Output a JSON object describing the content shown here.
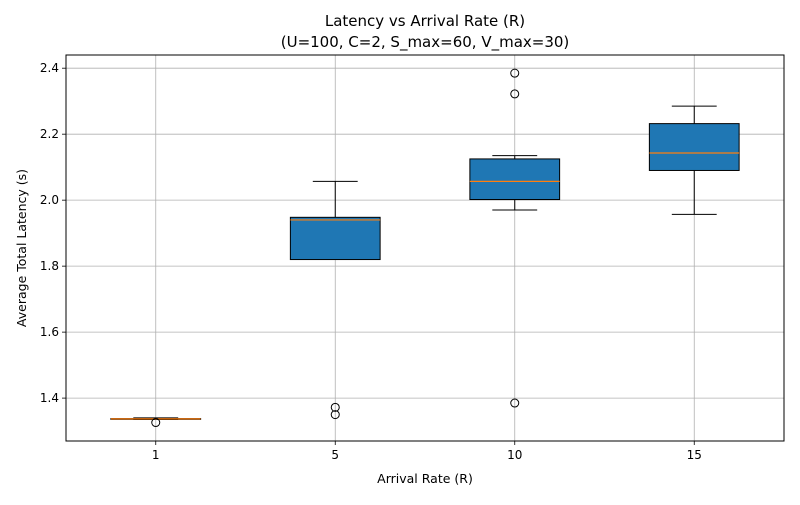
{
  "chart_data": {
    "type": "box",
    "title": "Latency vs Arrival Rate (R)",
    "subtitle": "(U=100, C=2, S_max=60, V_max=30)",
    "xlabel": "Arrival Rate (R)",
    "ylabel": "Average Total Latency (s)",
    "categories": [
      "1",
      "5",
      "10",
      "15"
    ],
    "ylim": [
      1.27,
      2.44
    ],
    "yticks": [
      "1.4",
      "1.6",
      "1.8",
      "2.0",
      "2.2",
      "2.4"
    ],
    "grid": true,
    "box_color": "#1f77b4",
    "median_color": "#ff7f0e",
    "boxes": [
      {
        "category": "1",
        "whisker_low": 1.335,
        "q1": 1.337,
        "median": 1.337,
        "q3": 1.338,
        "whisker_high": 1.34,
        "outliers": [
          1.326
        ]
      },
      {
        "category": "5",
        "whisker_low": 1.82,
        "q1": 1.82,
        "median": 1.94,
        "q3": 1.948,
        "whisker_high": 2.057,
        "outliers": [
          1.372,
          1.35
        ]
      },
      {
        "category": "10",
        "whisker_low": 1.97,
        "q1": 2.002,
        "median": 2.057,
        "q3": 2.125,
        "whisker_high": 2.135,
        "outliers": [
          2.385,
          2.322,
          1.385
        ]
      },
      {
        "category": "15",
        "whisker_low": 1.957,
        "q1": 2.09,
        "median": 2.143,
        "q3": 2.232,
        "whisker_high": 2.285,
        "outliers": []
      }
    ]
  }
}
